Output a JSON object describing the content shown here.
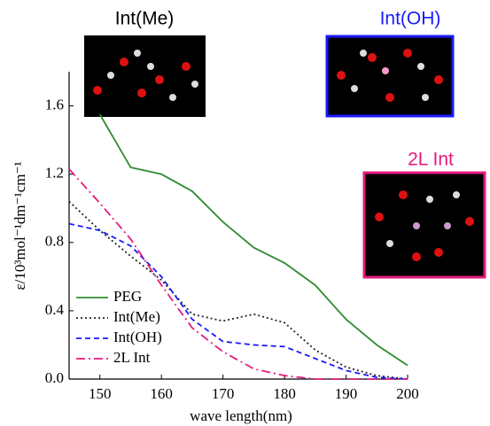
{
  "chart_data": {
    "type": "line",
    "x_label": "wave length(nm)",
    "y_label": "ε/10³mol⁻¹dm⁻¹cm⁻¹",
    "x": [
      145,
      150,
      155,
      160,
      165,
      170,
      175,
      180,
      185,
      190,
      195,
      200
    ],
    "series": [
      {
        "name": "PEG",
        "color": "#2e8b2e",
        "dash": "solid",
        "values": [
          null,
          1.55,
          1.24,
          1.2,
          1.1,
          0.92,
          0.77,
          0.68,
          0.55,
          0.35,
          0.2,
          0.08
        ]
      },
      {
        "name": "Int(Me)",
        "color": "#222222",
        "dash": "dot",
        "values": [
          1.04,
          0.87,
          0.72,
          0.58,
          0.38,
          0.34,
          0.38,
          0.33,
          0.17,
          0.07,
          0.02,
          0.0
        ]
      },
      {
        "name": "Int(OH)",
        "color": "#1a1aff",
        "dash": "dash",
        "values": [
          0.91,
          0.87,
          0.78,
          0.6,
          0.35,
          0.22,
          0.2,
          0.19,
          0.12,
          0.05,
          0.01,
          0.0
        ]
      },
      {
        "name": "2L Int",
        "color": "#e8197d",
        "dash": "dashdot",
        "values": [
          1.23,
          1.03,
          0.82,
          0.55,
          0.3,
          0.16,
          0.06,
          0.02,
          0.0,
          0.0,
          0.0,
          0.0
        ]
      }
    ],
    "xlim": [
      145,
      200
    ],
    "xticks": [
      150,
      160,
      170,
      180,
      190,
      200
    ],
    "ylim": [
      0,
      1.8
    ],
    "yticks": [
      {
        "value": 0,
        "label": "0.0"
      },
      0.4,
      0.8,
      1.2,
      1.6
    ],
    "legend": "lower left",
    "annotations": [
      {
        "text": "Int(Me)",
        "color": "#000000"
      },
      {
        "text": "Int(OH)",
        "color": "#1a1aff"
      },
      {
        "text": "2L Int",
        "color": "#e8197d"
      }
    ]
  }
}
